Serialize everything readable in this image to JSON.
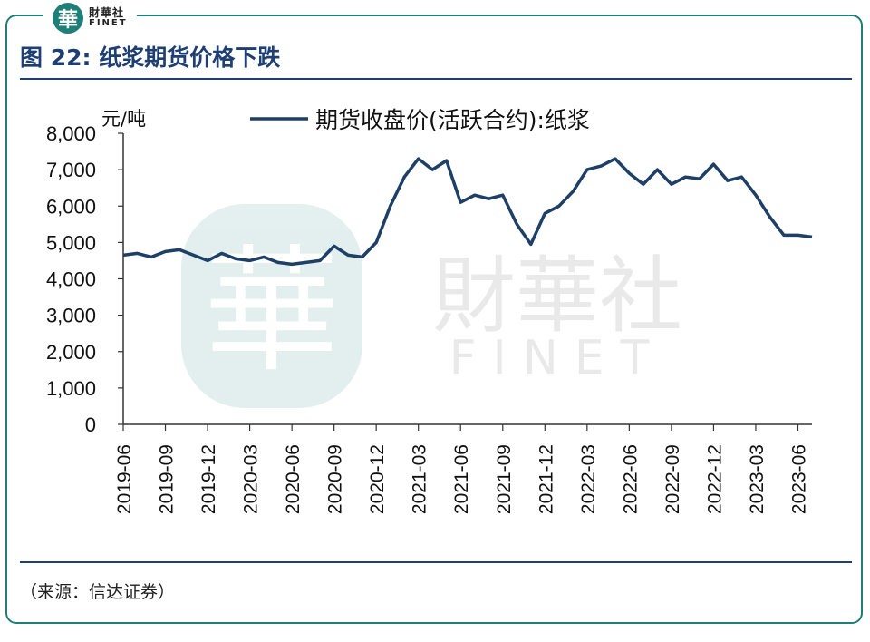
{
  "brand": {
    "logo_char": "華",
    "logo_cn": "財華社",
    "logo_en": "FINET",
    "accent": "#1d7f78"
  },
  "header": {
    "title": "图 22:  纸浆期货价格下跌",
    "title_color": "#1e3f73"
  },
  "footer": {
    "source": "（来源：信达证券）"
  },
  "watermark": {
    "char": "華",
    "cn": "財華社",
    "en": "FINET"
  },
  "chart_data": {
    "type": "line",
    "title": "",
    "ylabel": "元/吨",
    "xlabel": "",
    "ylim": [
      0,
      8000
    ],
    "yticks": [
      0,
      1000,
      2000,
      3000,
      4000,
      5000,
      6000,
      7000,
      8000
    ],
    "ytick_labels": [
      "0",
      "1,000",
      "2,000",
      "3,000",
      "4,000",
      "5,000",
      "6,000",
      "7,000",
      "8,000"
    ],
    "xticks": [
      "2019-06",
      "2019-09",
      "2019-12",
      "2020-03",
      "2020-06",
      "2020-09",
      "2020-12",
      "2021-03",
      "2021-06",
      "2021-09",
      "2021-12",
      "2022-03",
      "2022-06",
      "2022-09",
      "2022-12",
      "2023-03",
      "2023-06"
    ],
    "legend_position": "top",
    "grid": false,
    "series": [
      {
        "name": "期货收盘价(活跃合约):纸浆",
        "color": "#1e3f66",
        "points": [
          [
            "2019-06",
            4650
          ],
          [
            "2019-07",
            4700
          ],
          [
            "2019-08",
            4600
          ],
          [
            "2019-09",
            4750
          ],
          [
            "2019-10",
            4800
          ],
          [
            "2019-11",
            4650
          ],
          [
            "2019-12",
            4500
          ],
          [
            "2020-01",
            4700
          ],
          [
            "2020-02",
            4550
          ],
          [
            "2020-03",
            4500
          ],
          [
            "2020-04",
            4600
          ],
          [
            "2020-05",
            4450
          ],
          [
            "2020-06",
            4400
          ],
          [
            "2020-07",
            4450
          ],
          [
            "2020-08",
            4500
          ],
          [
            "2020-09",
            4900
          ],
          [
            "2020-10",
            4650
          ],
          [
            "2020-11",
            4600
          ],
          [
            "2020-12",
            5000
          ],
          [
            "2021-01",
            6000
          ],
          [
            "2021-02",
            6800
          ],
          [
            "2021-03",
            7300
          ],
          [
            "2021-04",
            7000
          ],
          [
            "2021-05",
            7250
          ],
          [
            "2021-06",
            6100
          ],
          [
            "2021-07",
            6300
          ],
          [
            "2021-08",
            6200
          ],
          [
            "2021-09",
            6300
          ],
          [
            "2021-10",
            5500
          ],
          [
            "2021-11",
            4950
          ],
          [
            "2021-12",
            5800
          ],
          [
            "2022-01",
            6000
          ],
          [
            "2022-02",
            6400
          ],
          [
            "2022-03",
            7000
          ],
          [
            "2022-04",
            7100
          ],
          [
            "2022-05",
            7300
          ],
          [
            "2022-06",
            6900
          ],
          [
            "2022-07",
            6600
          ],
          [
            "2022-08",
            7000
          ],
          [
            "2022-09",
            6600
          ],
          [
            "2022-10",
            6800
          ],
          [
            "2022-11",
            6750
          ],
          [
            "2022-12",
            7150
          ],
          [
            "2023-01",
            6700
          ],
          [
            "2023-02",
            6800
          ],
          [
            "2023-03",
            6300
          ],
          [
            "2023-04",
            5700
          ],
          [
            "2023-05",
            5200
          ],
          [
            "2023-06",
            5200
          ],
          [
            "2023-07",
            5150
          ]
        ]
      }
    ]
  }
}
